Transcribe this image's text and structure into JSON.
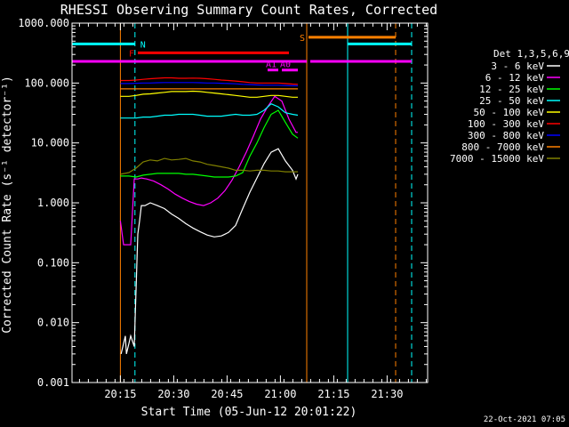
{
  "chart_data": {
    "type": "line",
    "title": "RHESSI Observing Summary Count Rates, Corrected",
    "xlabel": "Start Time (05-Jun-12 20:01:22)",
    "ylabel": "Corrected Count Rate (s⁻¹ detector⁻¹)",
    "yscale": "log",
    "ylim": [
      0.001,
      1000
    ],
    "xlim_minutes": [
      0,
      100
    ],
    "y_ticks": [
      "0.001",
      "0.010",
      "0.100",
      "1.000",
      "10.000",
      "100.000",
      "1000.000"
    ],
    "x_ticks": [
      "20:15",
      "20:30",
      "20:45",
      "21:00",
      "21:15",
      "21:30"
    ],
    "x_tick_minutes": [
      13.6,
      28.6,
      43.6,
      58.6,
      73.6,
      88.6
    ],
    "legend_title": "Det 1,3,5,6,9",
    "legend_position": "right",
    "timestamp": "22-Oct-2021 07:05",
    "series": [
      {
        "name": "3 - 6 keV",
        "color": "#ffffff",
        "x": [
          13.8,
          15.0,
          15.3,
          16.5,
          17.5,
          18.5,
          19.0,
          19.5,
          20.5,
          22,
          24,
          26,
          28,
          30,
          32,
          34,
          36,
          38,
          40,
          42,
          44,
          46,
          48,
          50,
          52,
          54,
          56,
          58,
          60,
          62,
          63,
          63.5
        ],
        "y": [
          0.003,
          0.006,
          0.003,
          0.006,
          0.004,
          0.3,
          0.5,
          0.9,
          0.9,
          1.0,
          0.9,
          0.8,
          0.65,
          0.55,
          0.45,
          0.38,
          0.33,
          0.29,
          0.27,
          0.28,
          0.32,
          0.42,
          0.8,
          1.5,
          2.6,
          4.5,
          7,
          8,
          5,
          3.5,
          2.5,
          3
        ]
      },
      {
        "name": "6 - 12 keV",
        "color": "#ff00ff",
        "x": [
          13.6,
          14.5,
          16.5,
          17.5,
          18.5,
          19.5,
          21,
          23,
          25,
          27,
          29,
          31,
          33,
          35,
          37,
          39,
          41,
          43,
          45,
          47,
          49,
          51,
          53,
          55,
          57,
          59,
          61,
          63,
          63.5
        ],
        "y": [
          0.5,
          0.2,
          0.2,
          2.5,
          2.5,
          2.6,
          2.5,
          2.3,
          2.0,
          1.7,
          1.4,
          1.2,
          1.05,
          0.95,
          0.9,
          1.0,
          1.2,
          1.6,
          2.4,
          4,
          7,
          13,
          25,
          40,
          60,
          50,
          25,
          15,
          15
        ]
      },
      {
        "name": "12 - 25 keV",
        "color": "#00ff00",
        "x": [
          13.6,
          16,
          18,
          20,
          22,
          24,
          26,
          28,
          30,
          32,
          34,
          36,
          38,
          40,
          42,
          44,
          46,
          48,
          50,
          52,
          54,
          56,
          58,
          60,
          62,
          63.5
        ],
        "y": [
          2.8,
          2.8,
          2.7,
          2.9,
          3.0,
          3.1,
          3.1,
          3.1,
          3.1,
          3.0,
          3.0,
          2.9,
          2.8,
          2.7,
          2.7,
          2.7,
          2.8,
          3.2,
          6,
          10,
          18,
          30,
          35,
          22,
          14,
          12
        ]
      },
      {
        "name": "25 - 50 keV",
        "color": "#00ffff",
        "x": [
          13.6,
          16,
          18,
          20,
          22,
          24,
          26,
          28,
          30,
          32,
          34,
          36,
          38,
          40,
          42,
          44,
          46,
          48,
          50,
          52,
          54,
          56,
          58,
          60,
          62,
          63.5
        ],
        "y": [
          26,
          26,
          26,
          27,
          27,
          28,
          29,
          29,
          30,
          30,
          30,
          29,
          28,
          28,
          28,
          29,
          30,
          29,
          29,
          30,
          35,
          45,
          40,
          32,
          30,
          29
        ]
      },
      {
        "name": "50 - 100 keV",
        "color": "#ffff00",
        "x": [
          13.6,
          16,
          18,
          20,
          22,
          24,
          26,
          28,
          30,
          32,
          34,
          36,
          38,
          40,
          42,
          44,
          46,
          48,
          50,
          52,
          54,
          56,
          58,
          60,
          62,
          63.5
        ],
        "y": [
          60,
          60,
          62,
          65,
          66,
          68,
          70,
          72,
          72,
          72,
          73,
          72,
          70,
          68,
          66,
          64,
          62,
          60,
          58,
          58,
          60,
          62,
          62,
          60,
          58,
          58
        ]
      },
      {
        "name": "100 - 300 keV",
        "color": "#ff0000",
        "x": [
          13.6,
          16,
          18,
          20,
          22,
          24,
          26,
          28,
          30,
          32,
          34,
          36,
          38,
          40,
          42,
          44,
          46,
          48,
          50,
          52,
          54,
          56,
          58,
          60,
          62,
          63.5
        ],
        "y": [
          110,
          110,
          112,
          115,
          118,
          120,
          122,
          122,
          120,
          120,
          121,
          120,
          118,
          115,
          112,
          110,
          108,
          105,
          102,
          100,
          100,
          100,
          100,
          98,
          96,
          95
        ]
      },
      {
        "name": "300 - 800 keV",
        "color": "#0000ff",
        "x": [
          13.6,
          16,
          18,
          20,
          22,
          24,
          26,
          28,
          30,
          32,
          34,
          36,
          38,
          40,
          42,
          44,
          46,
          48,
          50,
          52,
          54,
          56,
          58,
          60,
          62,
          63.5
        ],
        "y": [
          98,
          98,
          99,
          100,
          100,
          101,
          102,
          102,
          102,
          102,
          102,
          101,
          100,
          100,
          99,
          98,
          97,
          95,
          94,
          93,
          92,
          92,
          92,
          91,
          90,
          90
        ]
      },
      {
        "name": "800 - 7000 keV",
        "color": "#ff8000",
        "x": [
          13.6,
          63.5
        ],
        "y": [
          80,
          80
        ]
      },
      {
        "name": "7000 - 15000 keV",
        "color": "#808000",
        "x": [
          13.6,
          16,
          18,
          20,
          22,
          24,
          26,
          28,
          30,
          32,
          34,
          36,
          38,
          40,
          42,
          44,
          46,
          48,
          50,
          52,
          54,
          56,
          58,
          60,
          62,
          63.5
        ],
        "y": [
          3.0,
          3.2,
          3.8,
          4.8,
          5.2,
          5.0,
          5.5,
          5.2,
          5.3,
          5.5,
          5.0,
          4.8,
          4.4,
          4.2,
          4.0,
          3.8,
          3.5,
          3.5,
          3.4,
          3.5,
          3.5,
          3.4,
          3.4,
          3.3,
          3.3,
          3.3
        ]
      }
    ],
    "flag_bars": [
      {
        "label": "N",
        "color": "#00ffff",
        "segments": [
          [
            0,
            17.7
          ],
          [
            77.5,
            95.5
          ]
        ],
        "y": 450
      },
      {
        "label": "S",
        "color": "#ff8000",
        "segments": [
          [
            66.5,
            91.0
          ]
        ],
        "y": 580
      },
      {
        "label": "F",
        "color": "#ff0000",
        "segments": [
          [
            18.5,
            61.0
          ]
        ],
        "y": 320
      },
      {
        "label": "",
        "color": "#ff00ff",
        "segments": [
          [
            0,
            66.0
          ],
          [
            67.0,
            95.5
          ]
        ],
        "y": 230
      },
      {
        "label": "A1",
        "color": "#ff00ff",
        "segments": [
          [
            55.0,
            58.0
          ]
        ],
        "y": 165
      },
      {
        "label": "A0",
        "color": "#ff00ff",
        "segments": [
          [
            59.0,
            63.5
          ]
        ],
        "y": 165
      }
    ],
    "vertical_markers": [
      {
        "x": 13.6,
        "color": "#ff8000",
        "style": "solid"
      },
      {
        "x": 17.7,
        "color": "#00ffff",
        "style": "dashed"
      },
      {
        "x": 66.0,
        "color": "#ff8000",
        "style": "solid"
      },
      {
        "x": 77.5,
        "color": "#00ffff",
        "style": "solid"
      },
      {
        "x": 91.0,
        "color": "#ff8000",
        "style": "dashed"
      },
      {
        "x": 95.5,
        "color": "#00ffff",
        "style": "dashed"
      }
    ]
  }
}
